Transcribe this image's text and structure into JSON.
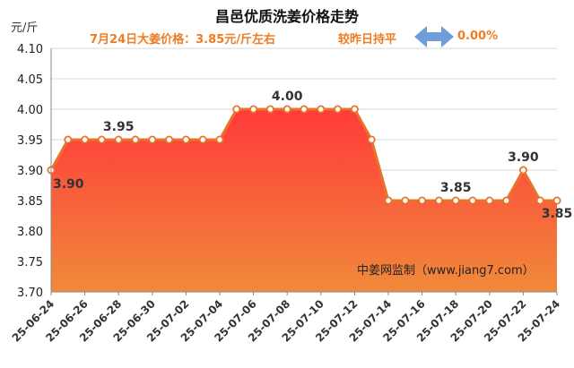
{
  "header": {
    "title": "昌邑优质洗姜价格走势",
    "price_text": "7月24日大姜价格：3.85元/斤左右",
    "trend_text": "较昨日持平",
    "change_text": "0.00%"
  },
  "colors": {
    "accent_text": "#f07c22",
    "line": "#e8742a",
    "area_top": "#ff3a3a",
    "area_bottom": "#f08a3a",
    "arrow": "#6e9fd8"
  },
  "watermark": "中姜网监制（www.jiang7.com）",
  "chart_data": {
    "type": "area",
    "title": "昌邑优质洗姜价格走势",
    "ylabel": "元/斤",
    "xlabel": "",
    "ylim": [
      3.7,
      4.1
    ],
    "y_ticks": [
      "4.10",
      "4.05",
      "4.00",
      "3.95",
      "3.90",
      "3.85",
      "3.80",
      "3.75",
      "3.70"
    ],
    "x_tick_labels": [
      "25-06-24",
      "25-06-26",
      "25-06-28",
      "25-06-30",
      "25-07-02",
      "25-07-04",
      "25-07-06",
      "25-07-08",
      "25-07-10",
      "25-07-12",
      "25-07-14",
      "25-07-16",
      "25-07-18",
      "25-07-20",
      "25-07-22",
      "25-07-24"
    ],
    "x": [
      "25-06-24",
      "25-06-25",
      "25-06-26",
      "25-06-27",
      "25-06-28",
      "25-06-29",
      "25-06-30",
      "25-07-01",
      "25-07-02",
      "25-07-03",
      "25-07-04",
      "25-07-05",
      "25-07-06",
      "25-07-07",
      "25-07-08",
      "25-07-09",
      "25-07-10",
      "25-07-11",
      "25-07-12",
      "25-07-13",
      "25-07-14",
      "25-07-15",
      "25-07-16",
      "25-07-17",
      "25-07-18",
      "25-07-19",
      "25-07-20",
      "25-07-21",
      "25-07-22",
      "25-07-23",
      "25-07-24"
    ],
    "values": [
      3.9,
      3.95,
      3.95,
      3.95,
      3.95,
      3.95,
      3.95,
      3.95,
      3.95,
      3.95,
      3.95,
      4.0,
      4.0,
      4.0,
      4.0,
      4.0,
      4.0,
      4.0,
      4.0,
      3.95,
      3.85,
      3.85,
      3.85,
      3.85,
      3.85,
      3.85,
      3.85,
      3.85,
      3.9,
      3.85,
      3.85
    ],
    "data_labels": [
      {
        "index": 0,
        "text": "3.90"
      },
      {
        "index": 4,
        "text": "3.95"
      },
      {
        "index": 14,
        "text": "4.00"
      },
      {
        "index": 24,
        "text": "3.85"
      },
      {
        "index": 28,
        "text": "3.90"
      },
      {
        "index": 30,
        "text": "3.85"
      }
    ],
    "grid": true,
    "legend": "none"
  }
}
